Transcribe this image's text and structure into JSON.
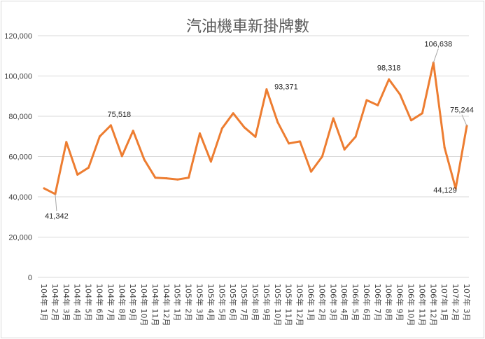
{
  "chart_data": {
    "type": "line",
    "title": "汽油機車新掛牌數",
    "xlabel": "",
    "ylabel": "",
    "ylim": [
      0,
      120000
    ],
    "yticks": [
      0,
      20000,
      40000,
      60000,
      80000,
      100000,
      120000
    ],
    "ytick_labels": [
      "0",
      "20,000",
      "40,000",
      "60,000",
      "80,000",
      "100,000",
      "120,000"
    ],
    "grid": true,
    "legend": "none",
    "line_color": "#ED7D31",
    "categories": [
      "104年 1月",
      "104年 2月",
      "104年 3月",
      "104年 4月",
      "104年 5月",
      "104年 6月",
      "104年 7月",
      "104年 8月",
      "104年 9月",
      "104年 10月",
      "104年 11月",
      "104年 12月",
      "105年 1月",
      "105年 2月",
      "105年 3月",
      "105年 4月",
      "105年 5月",
      "105年 6月",
      "105年 7月",
      "105年 8月",
      "105年 9月",
      "105年 10月",
      "105年 11月",
      "105年 12月",
      "106年 1月",
      "106年 2月",
      "106年 3月",
      "106年 4月",
      "106年 5月",
      "106年 6月",
      "106年 7月",
      "106年 8月",
      "106年 9月",
      "106年 10月",
      "106年 11月",
      "106年 12月",
      "107年 1月",
      "107年 2月",
      "107年 3月"
    ],
    "values": [
      44200,
      41342,
      67200,
      51000,
      54500,
      70000,
      75518,
      60200,
      72800,
      58500,
      49500,
      49200,
      48600,
      49500,
      71500,
      57500,
      74000,
      81500,
      74500,
      69800,
      93371,
      77000,
      66500,
      67500,
      52500,
      60000,
      79000,
      63500,
      69800,
      88000,
      85500,
      98318,
      90800,
      78000,
      81500,
      106638,
      64500,
      44129,
      75244
    ],
    "data_labels": [
      {
        "index": 1,
        "text": "41,342"
      },
      {
        "index": 6,
        "text": "75,518"
      },
      {
        "index": 20,
        "text": "93,371"
      },
      {
        "index": 31,
        "text": "98,318"
      },
      {
        "index": 35,
        "text": "106,638"
      },
      {
        "index": 37,
        "text": "44,129"
      },
      {
        "index": 38,
        "text": "75,244"
      }
    ]
  }
}
